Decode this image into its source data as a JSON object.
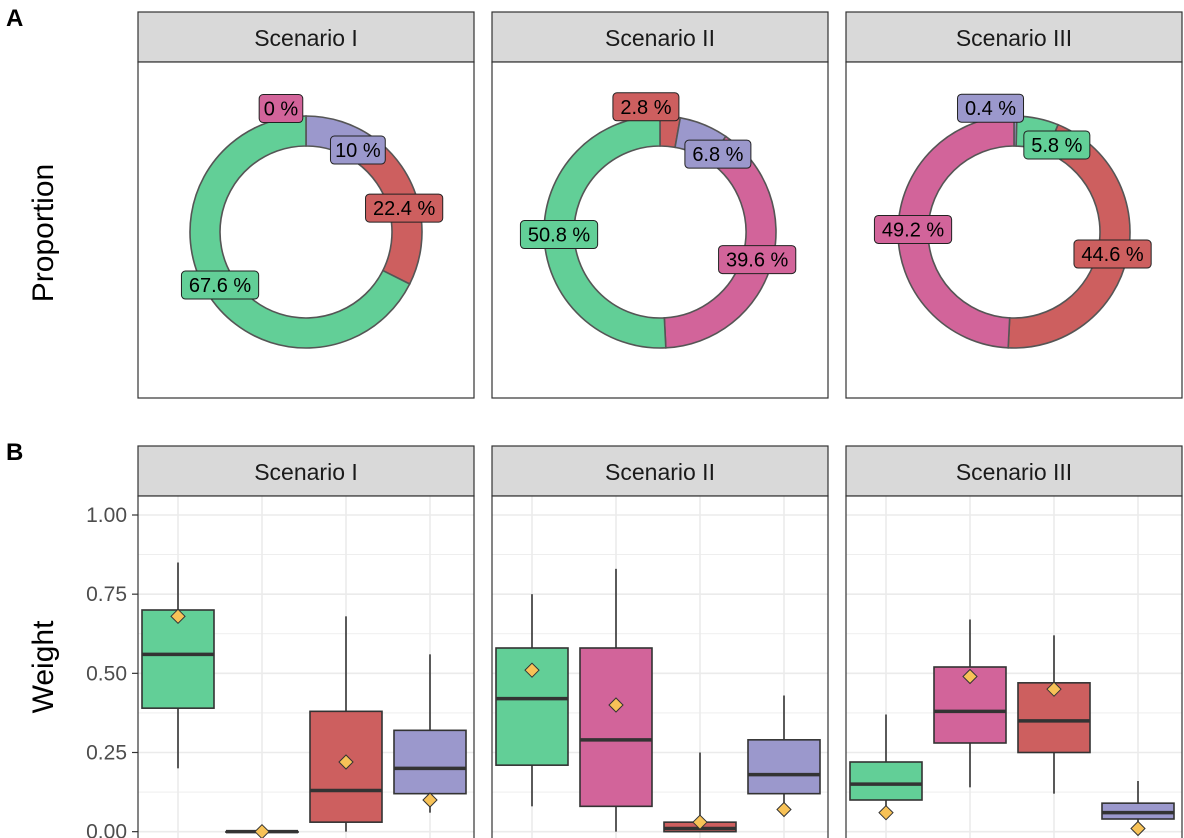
{
  "figure": {
    "panel_a_letter": "A",
    "panel_b_letter": "B"
  },
  "colors": {
    "green": "#62cf97",
    "pink": "#d2649a",
    "red": "#cd5f5f",
    "purple": "#9b98cc",
    "mean_marker": "#f7c257",
    "strip_bg": "#d9d9d9",
    "border": "#333333",
    "grid": "#ebebeb"
  },
  "chart_data": [
    {
      "type": "pie",
      "subtype": "donut",
      "ylabel": "Proportion",
      "facets": [
        {
          "title": "Scenario I",
          "slices": [
            {
              "value": 0.0,
              "label": "0 %",
              "color": "pink"
            },
            {
              "value": 10.0,
              "label": "10 %",
              "color": "purple"
            },
            {
              "value": 22.4,
              "label": "22.4 %",
              "color": "red"
            },
            {
              "value": 67.6,
              "label": "67.6 %",
              "color": "green"
            }
          ]
        },
        {
          "title": "Scenario II",
          "slices": [
            {
              "value": 2.8,
              "label": "2.8 %",
              "color": "red"
            },
            {
              "value": 6.8,
              "label": "6.8 %",
              "color": "purple"
            },
            {
              "value": 39.6,
              "label": "39.6 %",
              "color": "pink"
            },
            {
              "value": 50.8,
              "label": "50.8 %",
              "color": "green"
            }
          ]
        },
        {
          "title": "Scenario III",
          "slices": [
            {
              "value": 0.4,
              "label": "0.4 %",
              "color": "purple"
            },
            {
              "value": 5.8,
              "label": "5.8 %",
              "color": "green"
            },
            {
              "value": 44.6,
              "label": "44.6 %",
              "color": "red"
            },
            {
              "value": 49.2,
              "label": "49.2 %",
              "color": "pink"
            }
          ]
        }
      ]
    },
    {
      "type": "boxplot",
      "ylabel": "Weight",
      "ylim": [
        0,
        1.0
      ],
      "yticks": [
        0.0,
        0.25,
        0.5,
        0.75,
        1.0
      ],
      "ytick_labels": [
        "0.00",
        "0.25",
        "0.50",
        "0.75",
        "1.00"
      ],
      "grid": true,
      "group_order": [
        "green",
        "pink",
        "red",
        "purple"
      ],
      "facets": [
        {
          "title": "Scenario I",
          "boxes": [
            {
              "group": "green",
              "whisker_low": 0.2,
              "q1": 0.39,
              "median": 0.56,
              "q3": 0.7,
              "whisker_high": 0.85,
              "mean": 0.68
            },
            {
              "group": "pink",
              "whisker_low": 0.0,
              "q1": 0.0,
              "median": 0.0,
              "q3": 0.0,
              "whisker_high": 0.0,
              "mean": 0.0
            },
            {
              "group": "red",
              "whisker_low": 0.0,
              "q1": 0.03,
              "median": 0.13,
              "q3": 0.38,
              "whisker_high": 0.68,
              "mean": 0.22
            },
            {
              "group": "purple",
              "whisker_low": 0.06,
              "q1": 0.12,
              "median": 0.2,
              "q3": 0.32,
              "whisker_high": 0.56,
              "mean": 0.1
            }
          ]
        },
        {
          "title": "Scenario II",
          "boxes": [
            {
              "group": "green",
              "whisker_low": 0.08,
              "q1": 0.21,
              "median": 0.42,
              "q3": 0.58,
              "whisker_high": 0.75,
              "mean": 0.51
            },
            {
              "group": "pink",
              "whisker_low": 0.0,
              "q1": 0.08,
              "median": 0.29,
              "q3": 0.58,
              "whisker_high": 0.83,
              "mean": 0.4
            },
            {
              "group": "red",
              "whisker_low": 0.0,
              "q1": 0.0,
              "median": 0.01,
              "q3": 0.03,
              "whisker_high": 0.25,
              "mean": 0.03
            },
            {
              "group": "purple",
              "whisker_low": 0.07,
              "q1": 0.12,
              "median": 0.18,
              "q3": 0.29,
              "whisker_high": 0.43,
              "mean": 0.07
            }
          ]
        },
        {
          "title": "Scenario III",
          "boxes": [
            {
              "group": "green",
              "whisker_low": 0.06,
              "q1": 0.1,
              "median": 0.15,
              "q3": 0.22,
              "whisker_high": 0.37,
              "mean": 0.06
            },
            {
              "group": "pink",
              "whisker_low": 0.14,
              "q1": 0.28,
              "median": 0.38,
              "q3": 0.52,
              "whisker_high": 0.67,
              "mean": 0.49
            },
            {
              "group": "red",
              "whisker_low": 0.12,
              "q1": 0.25,
              "median": 0.35,
              "q3": 0.47,
              "whisker_high": 0.62,
              "mean": 0.45
            },
            {
              "group": "purple",
              "whisker_low": 0.01,
              "q1": 0.04,
              "median": 0.06,
              "q3": 0.09,
              "whisker_high": 0.16,
              "mean": 0.01
            }
          ]
        }
      ]
    }
  ]
}
